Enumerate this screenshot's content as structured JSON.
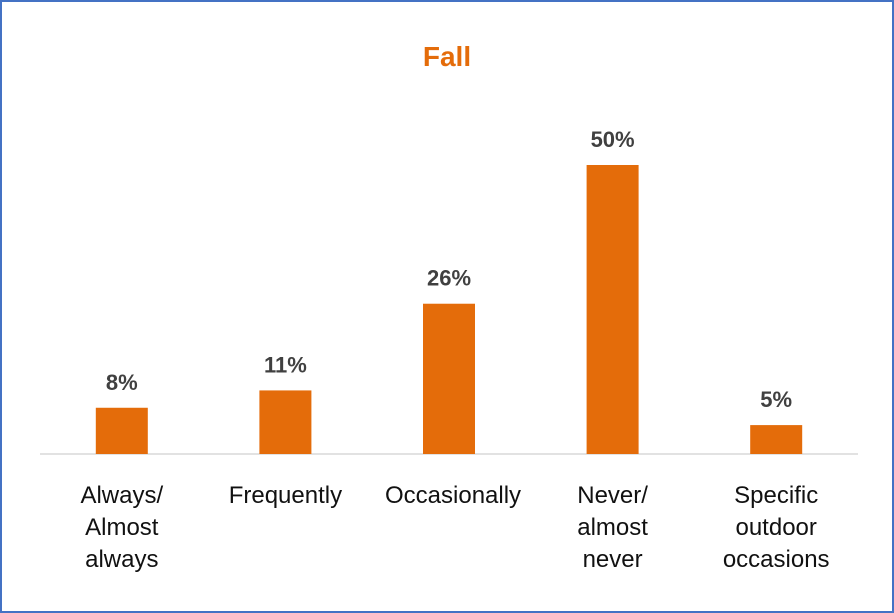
{
  "chart_data": {
    "type": "bar",
    "title": "Fall",
    "categories": [
      "Always/ Almost always",
      "Frequently",
      "Occasionally",
      "Never/ almost never",
      "Specific outdoor occasions"
    ],
    "values": [
      8,
      11,
      26,
      50,
      5
    ],
    "value_labels": [
      "8%",
      "11%",
      "26%",
      "50%",
      "5%"
    ],
    "color": "#e46c0a"
  }
}
